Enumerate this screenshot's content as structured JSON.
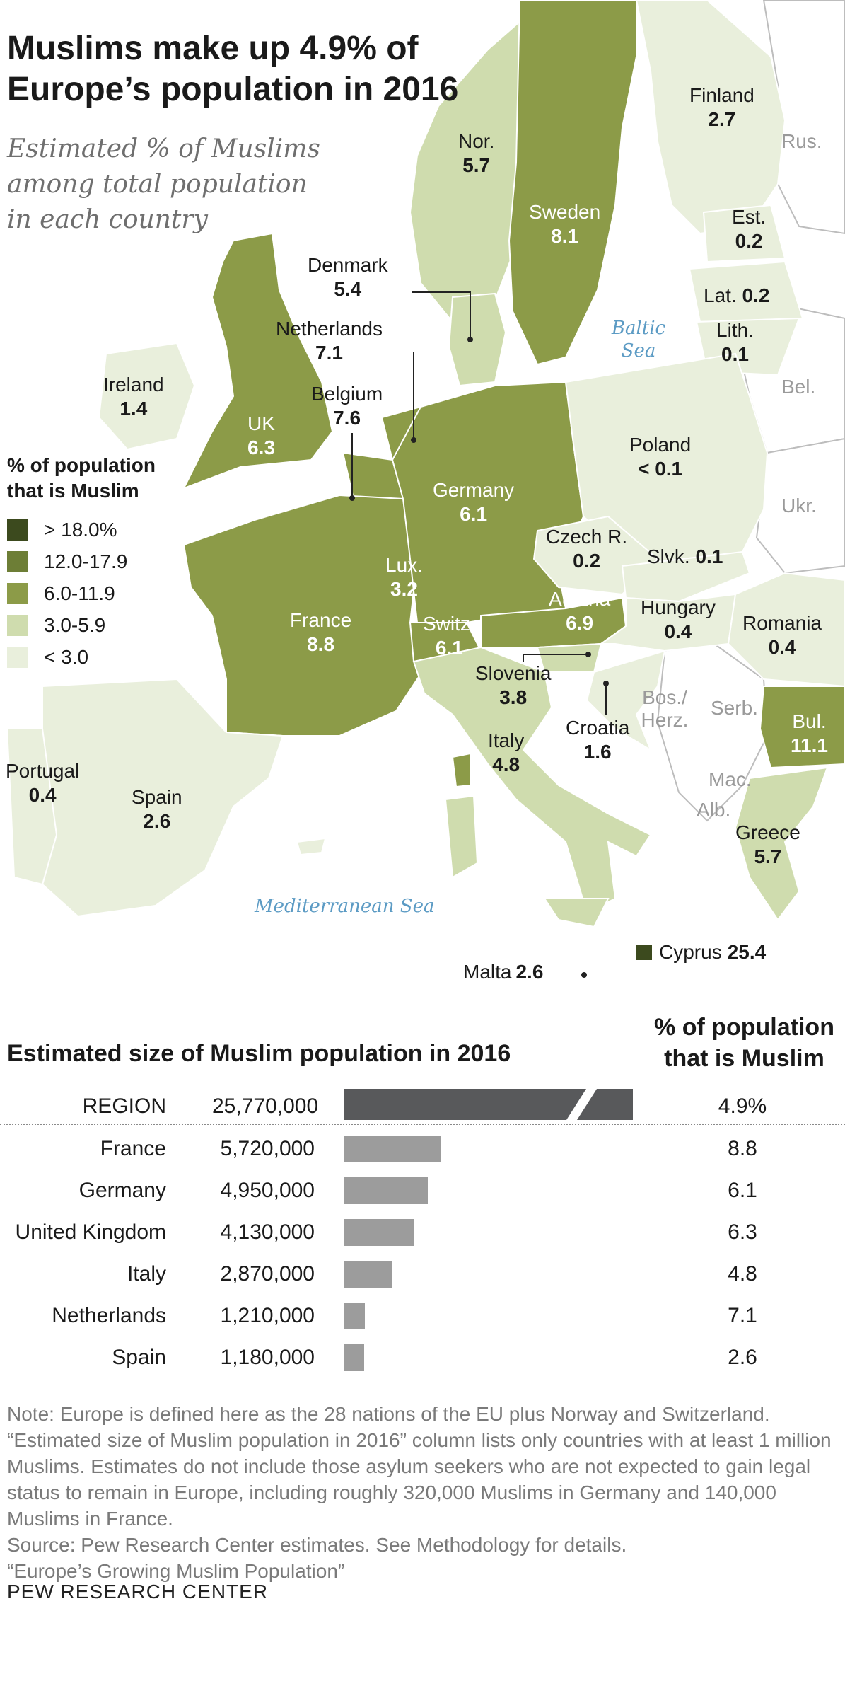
{
  "title": "Muslims make up 4.9% of Europe’s population in 2016",
  "subtitle": "Estimated % of Muslims among total population in each country",
  "legend": {
    "title": "% of population that is Muslim",
    "items": [
      {
        "label": "> 18.0%",
        "color": "#3c4a1e"
      },
      {
        "label": "12.0-17.9",
        "color": "#6d7e36"
      },
      {
        "label": "6.0-11.9",
        "color": "#8c9b48"
      },
      {
        "label": "3.0-5.9",
        "color": "#cfdcae"
      },
      {
        "label": "< 3.0",
        "color": "#e9efdc"
      }
    ]
  },
  "countries": [
    {
      "name": "Finland",
      "value": "2.7"
    },
    {
      "name": "Nor.",
      "value": "5.7"
    },
    {
      "name": "Sweden",
      "value": "8.1"
    },
    {
      "name": "Est.",
      "value": "0.2"
    },
    {
      "name": "Denmark",
      "value": "5.4"
    },
    {
      "name": "Lat.",
      "value": "0.2"
    },
    {
      "name": "Lith.",
      "value": "0.1"
    },
    {
      "name": "Netherlands",
      "value": "7.1"
    },
    {
      "name": "Ireland",
      "value": "1.4"
    },
    {
      "name": "Belgium",
      "value": "7.6"
    },
    {
      "name": "UK",
      "value": "6.3"
    },
    {
      "name": "Poland",
      "value": "< 0.1"
    },
    {
      "name": "Germany",
      "value": "6.1"
    },
    {
      "name": "Czech R.",
      "value": "0.2"
    },
    {
      "name": "Slvk.",
      "value": "0.1"
    },
    {
      "name": "Lux.",
      "value": "3.2"
    },
    {
      "name": "Austria",
      "value": "6.9"
    },
    {
      "name": "Hungary",
      "value": "0.4"
    },
    {
      "name": "France",
      "value": "8.8"
    },
    {
      "name": "Switz.",
      "value": "6.1"
    },
    {
      "name": "Romania",
      "value": "0.4"
    },
    {
      "name": "Slovenia",
      "value": "3.8"
    },
    {
      "name": "Croatia",
      "value": "1.6"
    },
    {
      "name": "Italy",
      "value": "4.8"
    },
    {
      "name": "Bul.",
      "value": "11.1"
    },
    {
      "name": "Portugal",
      "value": "0.4"
    },
    {
      "name": "Spain",
      "value": "2.6"
    },
    {
      "name": "Greece",
      "value": "5.7"
    },
    {
      "name": "Cyprus",
      "value": "25.4"
    },
    {
      "name": "Malta",
      "value": "2.6"
    }
  ],
  "non_members": [
    "Rus.",
    "Bel.",
    "Ukr.",
    "Bos./ Herz.",
    "Serb.",
    "Mac.",
    "Alb."
  ],
  "seas": [
    "Baltic Sea",
    "Mediterranean Sea"
  ],
  "table": {
    "title": "Estimated size of Muslim population in 2016",
    "pct_header": "% of population that is Muslim",
    "region": {
      "name": "REGION",
      "count": "25,770,000",
      "pct": "4.9%"
    },
    "rows": [
      {
        "name": "France",
        "count": "5,720,000",
        "pct": "8.8"
      },
      {
        "name": "Germany",
        "count": "4,950,000",
        "pct": "6.1"
      },
      {
        "name": "United Kingdom",
        "count": "4,130,000",
        "pct": "6.3"
      },
      {
        "name": "Italy",
        "count": "2,870,000",
        "pct": "4.8"
      },
      {
        "name": "Netherlands",
        "count": "1,210,000",
        "pct": "7.1"
      },
      {
        "name": "Spain",
        "count": "1,180,000",
        "pct": "2.6"
      }
    ],
    "bar_max": 5720000,
    "region_bar_color": "#58595b",
    "row_bar_color": "#9c9c9c"
  },
  "note": [
    "Note: Europe is defined here as the 28 nations of the EU plus Norway and Switzerland. “Estimated size of Muslim population in 2016” column lists only countries with at least 1 million Muslims. Estimates do not include those asylum seekers who are not expected to gain legal status to remain in Europe, including roughly 320,000 Muslims in Germany and 140,000 Muslims in France.",
    "Source: Pew Research Center estimates. See Methodology for details.",
    "“Europe’s Growing Muslim Population”"
  ],
  "brand": "PEW RESEARCH CENTER"
}
